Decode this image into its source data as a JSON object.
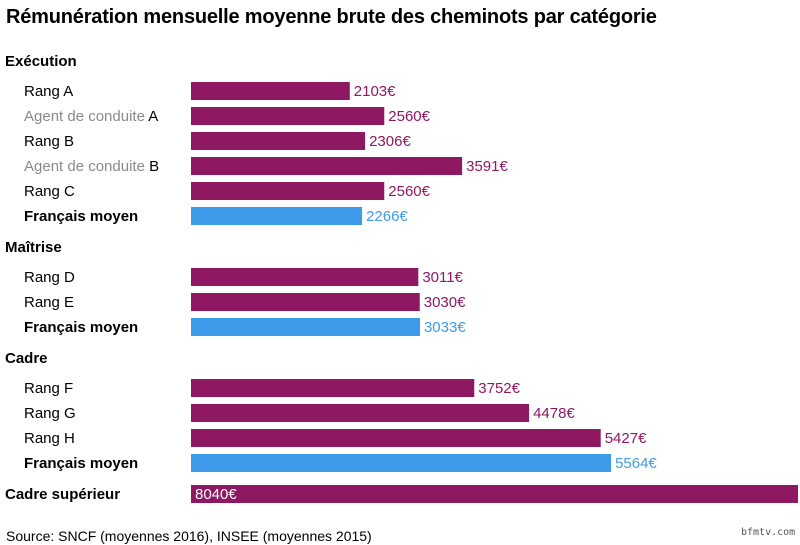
{
  "title": "Rémunération mensuelle moyenne brute des cheminots par catégorie",
  "source": "Source: SNCF (moyennes 2016), INSEE (moyennes 2015)",
  "watermark": "bfmtv.com",
  "colors": {
    "sncf": "#8e1862",
    "insee": "#3d9be9",
    "grey_label": "#8a8a8a"
  },
  "chart_data": {
    "type": "bar",
    "orientation": "horizontal",
    "unit": "€",
    "xlim": [
      0,
      8040
    ],
    "groups": [
      {
        "name": "Exécution",
        "items": [
          {
            "label": "Rang A",
            "value": 2103,
            "kind": "sncf"
          },
          {
            "label_grey": "Agent de conduite",
            "label_suffix": "A",
            "value": 2560,
            "kind": "sncf"
          },
          {
            "label": "Rang B",
            "value": 2306,
            "kind": "sncf"
          },
          {
            "label_grey": "Agent de conduite",
            "label_suffix": "B",
            "value": 3591,
            "kind": "sncf"
          },
          {
            "label": "Rang C",
            "value": 2560,
            "kind": "sncf"
          },
          {
            "label": "Français moyen",
            "value": 2266,
            "kind": "insee"
          }
        ]
      },
      {
        "name": "Maîtrise",
        "items": [
          {
            "label": "Rang D",
            "value": 3011,
            "kind": "sncf"
          },
          {
            "label": "Rang E",
            "value": 3030,
            "kind": "sncf"
          },
          {
            "label": "Français moyen",
            "value": 3033,
            "kind": "insee"
          }
        ]
      },
      {
        "name": "Cadre",
        "items": [
          {
            "label": "Rang F",
            "value": 3752,
            "kind": "sncf"
          },
          {
            "label": "Rang G",
            "value": 4478,
            "kind": "sncf"
          },
          {
            "label": "Rang H",
            "value": 5427,
            "kind": "sncf"
          },
          {
            "label": "Français moyen",
            "value": 5564,
            "kind": "insee"
          }
        ]
      },
      {
        "name": "Cadre supérieur",
        "items": [
          {
            "value": 8040,
            "kind": "sncf",
            "inline_with_group": true,
            "label_inside": true
          }
        ]
      }
    ]
  }
}
